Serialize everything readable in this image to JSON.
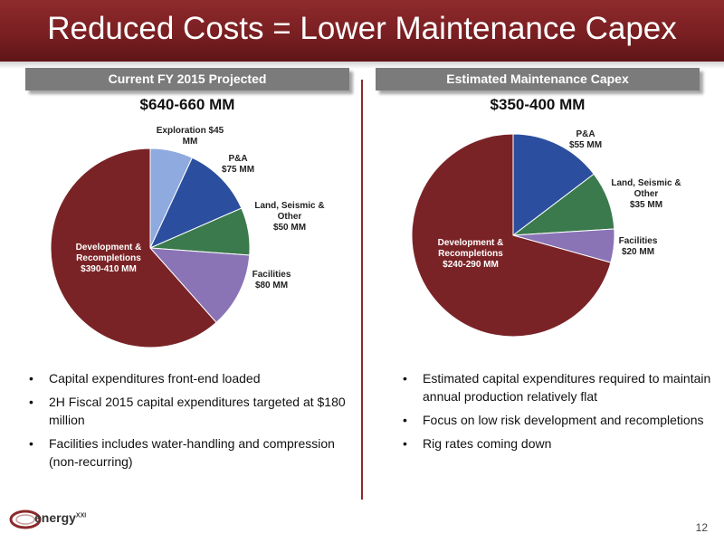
{
  "title": "Reduced Costs = Lower Maintenance Capex",
  "panels": [
    {
      "header": "Current FY 2015 Projected",
      "total": "$640-660 MM",
      "labels": {
        "exploration": [
          "Exploration $45",
          "MM"
        ],
        "pa": [
          "P&A",
          "$75 MM"
        ],
        "land": [
          "Land, Seismic &",
          "Other",
          "$50 MM"
        ],
        "facilities": [
          "Facilities",
          "$80 MM"
        ],
        "development": [
          "Development &",
          "Recompletions",
          "$390-410 MM"
        ]
      },
      "bullets": [
        "Capital expenditures front-end loaded",
        "2H Fiscal 2015 capital expenditures targeted at $180 million",
        "Facilities includes water-handling and compression (non-recurring)"
      ]
    },
    {
      "header": "Estimated Maintenance Capex",
      "total": "$350-400 MM",
      "labels": {
        "pa": [
          "P&A",
          "$55 MM"
        ],
        "land": [
          "Land, Seismic &",
          "Other",
          "$35 MM"
        ],
        "facilities": [
          "Facilities",
          "$20 MM"
        ],
        "development": [
          "Development &",
          "Recompletions",
          "$240-290 MM"
        ]
      },
      "bullets": [
        "Estimated capital expenditures required to maintain annual production relatively flat",
        "Focus on low risk development and recompletions",
        "Rig rates coming down"
      ]
    }
  ],
  "chart_data": [
    {
      "type": "pie",
      "title": "$640-660 MM",
      "categories": [
        "Exploration",
        "P&A",
        "Land, Seismic & Other",
        "Facilities",
        "Development & Recompletions"
      ],
      "values": [
        45,
        75,
        50,
        80,
        400
      ],
      "colors": [
        "#8eaadf",
        "#2b4f9e",
        "#3a7a4c",
        "#8a74b6",
        "#7a2326"
      ]
    },
    {
      "type": "pie",
      "title": "$350-400 MM",
      "categories": [
        "P&A",
        "Land, Seismic & Other",
        "Facilities",
        "Development & Recompletions"
      ],
      "values": [
        55,
        35,
        20,
        265
      ],
      "colors": [
        "#2b4f9e",
        "#3a7a4c",
        "#8a74b6",
        "#7a2326"
      ]
    }
  ],
  "logo": {
    "text": "energy",
    "sup": "XXI"
  },
  "page_number": "12"
}
